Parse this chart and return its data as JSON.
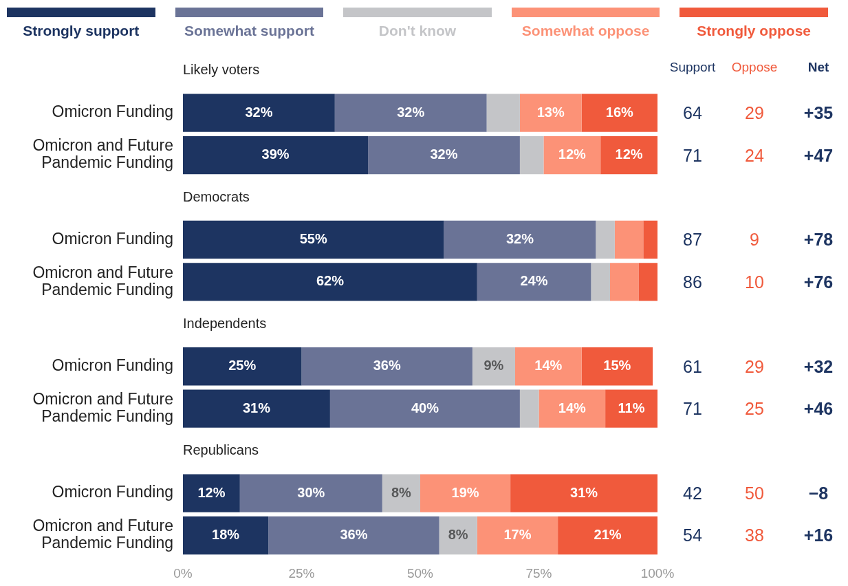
{
  "chart_data": [
    {
      "type": "bar",
      "orientation": "horizontal",
      "stacked": true,
      "legend": "top",
      "grid": false,
      "categories": [
        "Likely voters",
        "Omicron Funding",
        "Omicron and Future Pandemic Funding",
        "Democrats",
        "Omicron Funding",
        "Omicron and Future Pandemic Funding",
        "Independents",
        "Omicron Funding",
        "Omicron and Future Pandemic Funding",
        "Republicans",
        "Omicron Funding",
        "Omicron and Future Pandemic Funding"
      ],
      "xlim": [
        0,
        100
      ],
      "xticks": [
        {
          "value": 0,
          "label": "0%"
        },
        {
          "value": 25,
          "label": "25%"
        },
        {
          "value": 50,
          "label": "50%"
        },
        {
          "value": 75,
          "label": "75%"
        },
        {
          "value": 100,
          "label": "100%"
        }
      ],
      "series": [
        {
          "name": "Strongly support",
          "color": "#1d3461",
          "values": [
            null,
            32,
            39,
            null,
            55,
            62,
            null,
            25,
            31,
            null,
            12,
            18
          ],
          "value_labels": [
            null,
            "32%",
            "39%",
            null,
            "55%",
            "62%",
            null,
            "25%",
            "31%",
            null,
            "12%",
            "18%"
          ]
        },
        {
          "name": "Somewhat support",
          "color": "#6a7396",
          "values": [
            null,
            32,
            32,
            null,
            32,
            24,
            null,
            36,
            40,
            null,
            30,
            36
          ],
          "value_labels": [
            null,
            "32%",
            "32%",
            null,
            "32%",
            "24%",
            null,
            "36%",
            "40%",
            null,
            "30%",
            "36%"
          ]
        },
        {
          "name": "Don't know",
          "color": "#c4c5c8",
          "values": [
            null,
            7,
            5,
            null,
            4,
            4,
            null,
            9,
            4,
            null,
            8,
            8
          ],
          "value_labels": [
            null,
            null,
            null,
            null,
            null,
            null,
            null,
            "9%",
            null,
            null,
            "8%",
            "8%"
          ]
        },
        {
          "name": "Somewhat oppose",
          "color": "#fc9277",
          "values": [
            null,
            13,
            12,
            null,
            6,
            6,
            null,
            14,
            14,
            null,
            19,
            17
          ],
          "value_labels": [
            null,
            "13%",
            "12%",
            null,
            null,
            null,
            null,
            "14%",
            "14%",
            null,
            "19%",
            "17%"
          ]
        },
        {
          "name": "Strongly oppose",
          "color": "#f05a3c",
          "values": [
            null,
            16,
            12,
            null,
            3,
            4,
            null,
            15,
            11,
            null,
            31,
            21
          ],
          "value_labels": [
            null,
            "16%",
            "12%",
            null,
            null,
            null,
            null,
            "15%",
            "11%",
            null,
            "31%",
            "21%"
          ]
        }
      ]
    },
    {
      "type": "other",
      "annotations": [
        "Support",
        "Oppose",
        "Net",
        "64",
        "29",
        "+35",
        "71",
        "24",
        "+47",
        "87",
        "9",
        "+78",
        "86",
        "10",
        "+76",
        "61",
        "29",
        "+32",
        "71",
        "25",
        "+46",
        "42",
        "50",
        "−8",
        "54",
        "38",
        "+16"
      ]
    }
  ]
}
